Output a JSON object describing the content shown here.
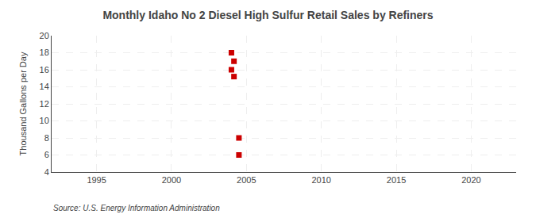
{
  "chart_data": {
    "type": "scatter",
    "title": "Monthly Idaho No 2 Diesel High Sulfur Retail Sales by Refiners",
    "ylabel": "Thousand Gallons per Day",
    "annotations": [
      "Source: U.S. Energy Information Administration"
    ],
    "x": [
      2004.0,
      2004.17,
      2004.0,
      2004.17,
      2004.5,
      2004.5
    ],
    "values": [
      18.0,
      17.0,
      16.0,
      15.2,
      8.0,
      6.0
    ],
    "color": "#cc0000",
    "marker": "square",
    "grid": true,
    "xlim": [
      1992,
      2023
    ],
    "ylim": [
      4,
      20
    ],
    "xticks": [
      1995,
      2000,
      2005,
      2010,
      2015,
      2020
    ],
    "yticks": [
      4,
      6,
      8,
      10,
      12,
      14,
      16,
      18,
      20
    ]
  }
}
